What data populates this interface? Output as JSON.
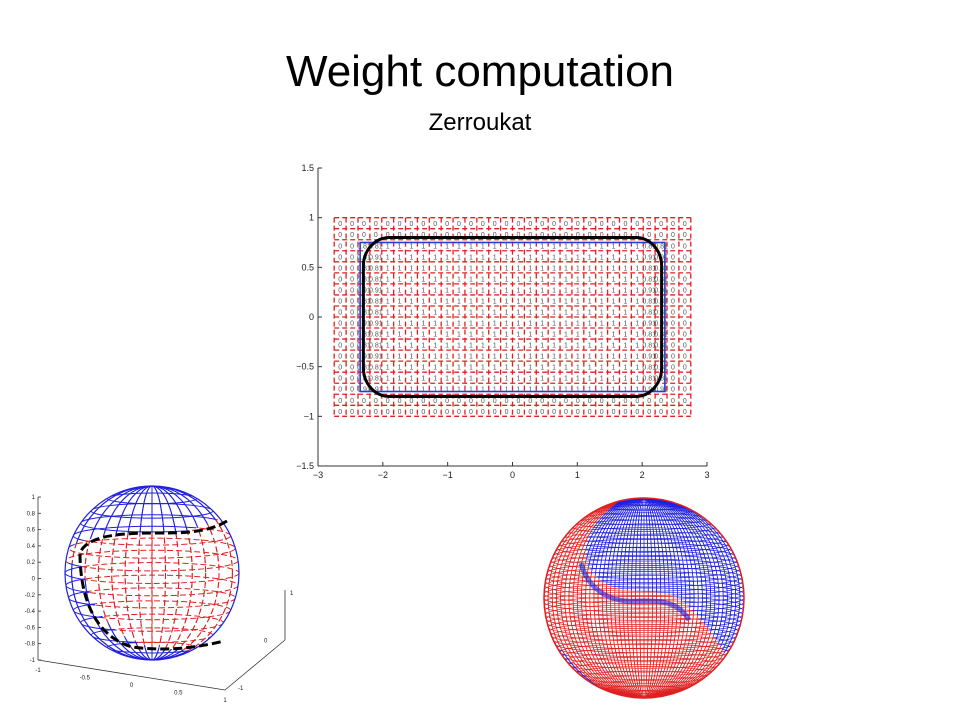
{
  "slide": {
    "title": "Weight computation",
    "subtitle": "Zerroukat"
  },
  "colors": {
    "cell_lines": "#e02020",
    "rectangle": "#1f3fd0",
    "contour": "#000000",
    "sphere_upper": "#2020e0",
    "sphere_lower": "#e02020"
  },
  "chart_data": [
    {
      "type": "scatter",
      "description_from_image": "grid of cell weights with rounded-rectangle contour",
      "xlim": [
        -3,
        3
      ],
      "ylim": [
        -1.5,
        1.5
      ],
      "x_ticks": [
        "-3",
        "-2",
        "-1",
        "0",
        "1",
        "2",
        "3"
      ],
      "y_ticks": [
        "1.5",
        "1",
        "0.5",
        "0",
        "-0.5",
        "-1",
        "-1.5"
      ],
      "grid_x_range": [
        -2.75,
        2.75
      ],
      "grid_y_range": [
        -1.0,
        1.0
      ],
      "rectangle": {
        "x": [
          -2.35,
          2.35
        ],
        "y": [
          -0.75,
          0.75
        ]
      },
      "contour": {
        "x": [
          -2.3,
          2.3
        ],
        "y": [
          -0.8,
          0.8
        ],
        "corner_radius": 0.4
      },
      "cell_values": [
        "0",
        "1",
        "0.81",
        "0.91",
        "0.20",
        "0.30"
      ]
    },
    {
      "type": "scatter",
      "description_from_image": "3D wireframe sphere (left)",
      "z_ticks": [
        "1",
        "0.8",
        "0.6",
        "0.4",
        "0.2",
        "0",
        "-0.2",
        "-0.4",
        "-0.6",
        "-0.8",
        "-1"
      ],
      "x_ticks": [
        "-1",
        "-0.5",
        "0",
        "0.5",
        "1"
      ],
      "y_ticks": [
        "-1",
        "0",
        "1"
      ]
    }
  ]
}
